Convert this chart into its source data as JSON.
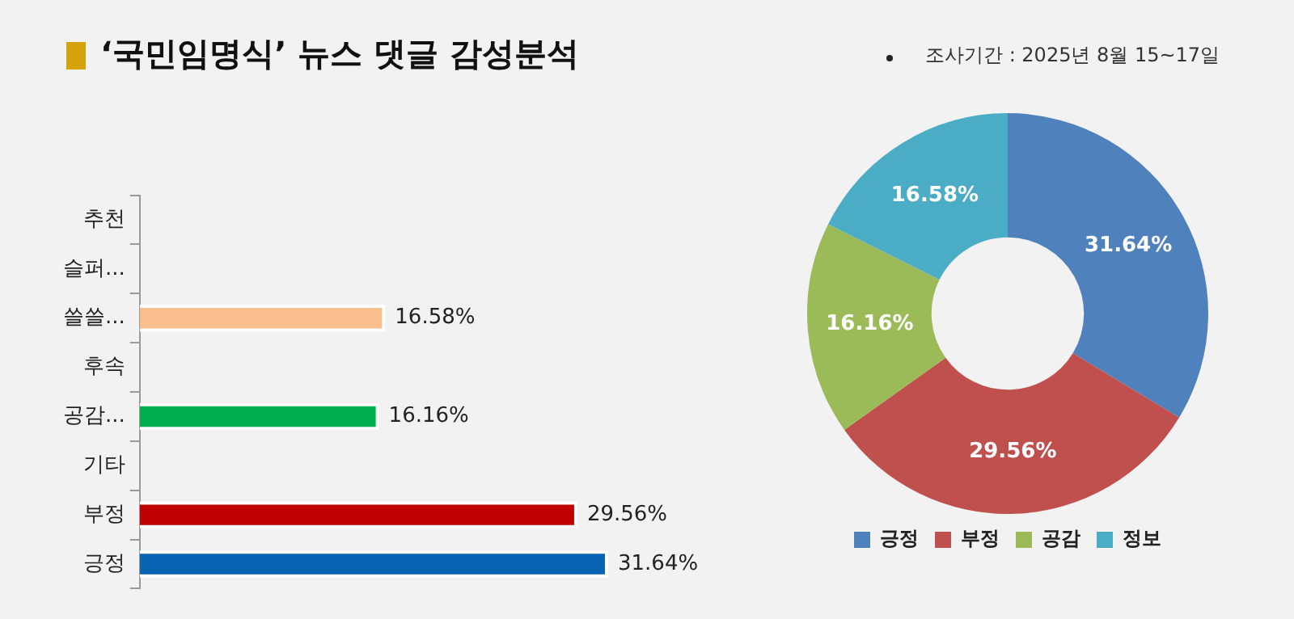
{
  "chart_data": [
    {
      "type": "bar",
      "title": "‘국민임명식’ 뉴스 댓글 감성분석",
      "annotations": [
        "조사기간 : 2025년 8월 15~17일"
      ],
      "orientation": "horizontal",
      "categories": [
        "추천",
        "슬퍼...",
        "쓸쓸...",
        "후속",
        "공감...",
        "기타",
        "부정",
        "긍정"
      ],
      "values": [
        null,
        null,
        16.58,
        null,
        16.16,
        null,
        29.56,
        31.64
      ],
      "value_labels": [
        null,
        null,
        "16.58%",
        null,
        "16.16%",
        null,
        "29.56%",
        "31.64%"
      ],
      "colors": [
        "#f9bf8f",
        "#f9bf8f",
        "#f9bf8f",
        "#00b050",
        "#00b050",
        "#c00000",
        "#c00000",
        "#0a64b4"
      ],
      "legend": false
    },
    {
      "type": "donut",
      "categories": [
        "긍정",
        "부정",
        "공감",
        "정보"
      ],
      "values": [
        31.64,
        29.56,
        16.16,
        16.58
      ],
      "colors": [
        "#4f81bd",
        "#c0504d",
        "#9bbb59",
        "#4bacc6"
      ],
      "value_labels": [
        "31.64%",
        "29.56%",
        "16.16%",
        "16.58%"
      ],
      "legend": "bottom"
    }
  ]
}
